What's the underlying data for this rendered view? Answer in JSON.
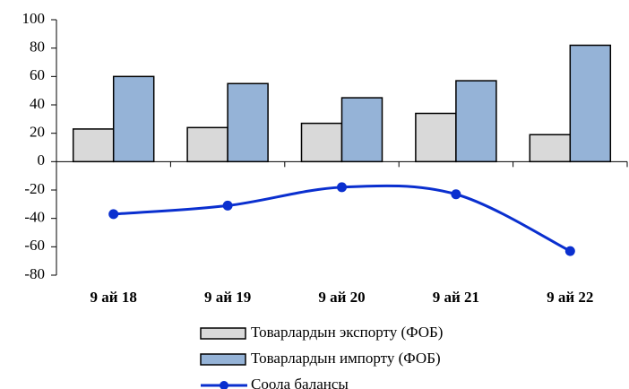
{
  "chart_data": {
    "type": "bar",
    "categories": [
      "9 ай 18",
      "9 ай 19",
      "9 ай 20",
      "9 ай 21",
      "9 ай 22"
    ],
    "series": [
      {
        "name": "Товарлардын экспорту (ФОБ)",
        "type": "bar",
        "color": "#d9d9d9",
        "values": [
          23,
          24,
          27,
          34,
          19
        ]
      },
      {
        "name": "Товарлардын импорту (ФОБ)",
        "type": "bar",
        "color": "#95b3d7",
        "values": [
          60,
          55,
          45,
          57,
          82
        ]
      },
      {
        "name": "Соола балансы",
        "type": "line",
        "color": "#0a2fcf",
        "values": [
          -37,
          -31,
          -18,
          -23,
          -63
        ]
      }
    ],
    "ylim": [
      -80,
      100
    ],
    "yticks": [
      -80,
      -60,
      -40,
      -20,
      0,
      20,
      40,
      60,
      80,
      100
    ]
  }
}
